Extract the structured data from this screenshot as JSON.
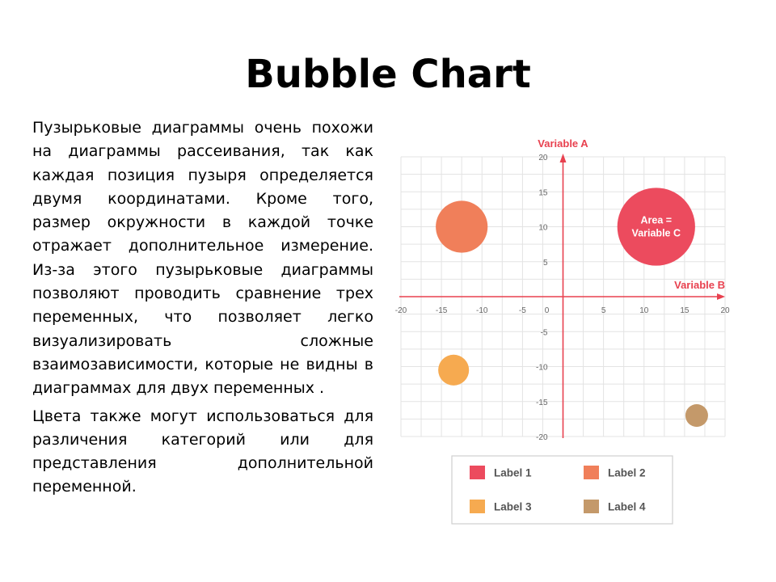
{
  "slide": {
    "title": "Bubble Chart",
    "paragraphs": [
      "Пузырьковые диаграммы очень похожи на диаграммы рассеивания, так как каждая позиция пузыря определяется двумя координатами. Кроме того, размер окружности в каждой точке отражает дополнительное измерение. Из-за этого пузырьковые диаграммы позволяют проводить сравнение трех переменных, что позволяет легко визуализировать сложные взаимозависимости, которые не видны в диаграммах для двух переменных .",
      "Цвета также могут использоваться для различения категорий или для представления дополнительной переменной."
    ]
  },
  "chart_data": {
    "type": "scatter",
    "subtype": "bubble",
    "xlabel": "Variable B",
    "ylabel": "Variable A",
    "xlim": [
      -20,
      20
    ],
    "ylim": [
      -20,
      20
    ],
    "x_ticks": [
      -20,
      -15,
      -10,
      -5,
      0,
      5,
      10,
      15,
      20
    ],
    "y_ticks": [
      20,
      15,
      10,
      5,
      -5,
      -10,
      -15,
      -20
    ],
    "grid": true,
    "axis_color": "#e8414f",
    "size_annotation": "Area =\nVariable C",
    "series": [
      {
        "name": "Label 1",
        "color": "#ec4b5e",
        "points": [
          {
            "x": 11.5,
            "y": 10,
            "r": 4.8
          }
        ]
      },
      {
        "name": "Label 2",
        "color": "#f07f5a",
        "points": [
          {
            "x": -12.5,
            "y": 10,
            "r": 3.2
          }
        ]
      },
      {
        "name": "Label 3",
        "color": "#f6aa50",
        "points": [
          {
            "x": -13.5,
            "y": -10.5,
            "r": 1.9
          }
        ]
      },
      {
        "name": "Label 4",
        "color": "#c4996a",
        "points": [
          {
            "x": 16.5,
            "y": -17,
            "r": 1.4
          }
        ]
      }
    ],
    "legend": "bottom",
    "legend_entries": [
      "Label 1",
      "Label 2",
      "Label 3",
      "Label 4"
    ]
  }
}
